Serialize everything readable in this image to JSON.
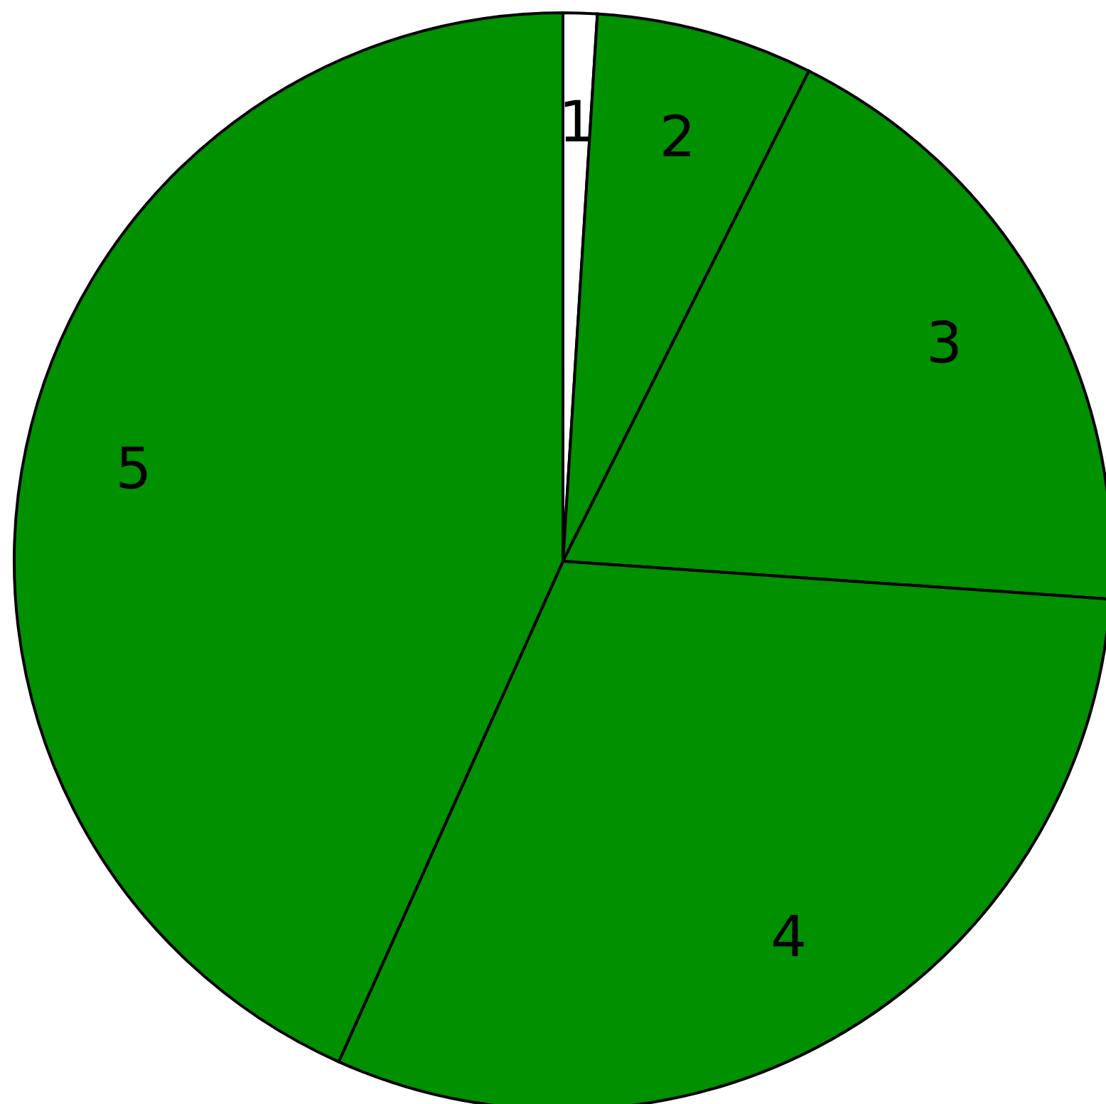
{
  "chart_data": {
    "type": "pie",
    "categories": [
      "1",
      "2",
      "3",
      "4",
      "5"
    ],
    "values": [
      1.0,
      6.4,
      18.7,
      30.6,
      43.3
    ],
    "colors": [
      "#ffffff",
      "#009000",
      "#009000",
      "#009000",
      "#009000"
    ],
    "legend": false
  }
}
